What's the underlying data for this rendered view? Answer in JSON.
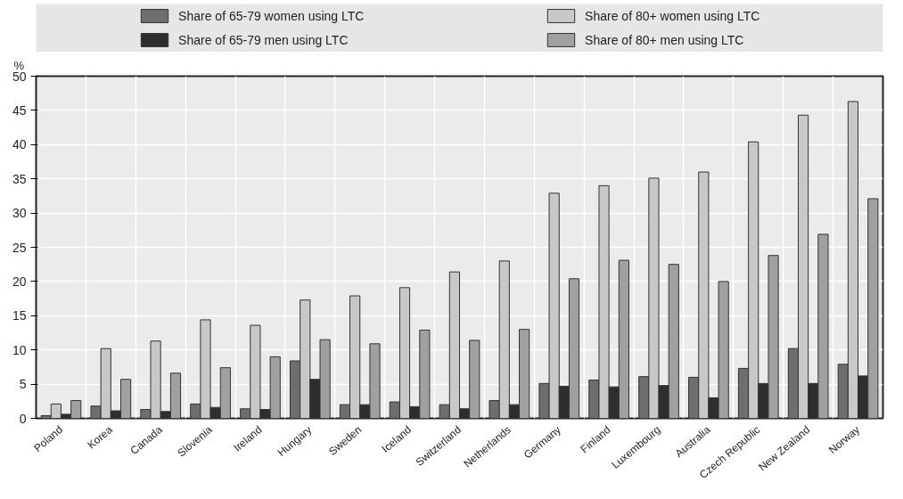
{
  "chart_data": {
    "type": "bar",
    "ylabel": "%",
    "categories": [
      "Poland",
      "Korea",
      "Canada",
      "Slovenia",
      "Ireland",
      "Hungary",
      "Sweden",
      "Iceland",
      "Switzerland",
      "Netherlands",
      "Germany",
      "Finland",
      "Luxembourg",
      "Australia",
      "Czech Republic",
      "New Zealand",
      "Norway"
    ],
    "series": [
      {
        "name": "Share of 65-79 women using LTC",
        "color": "#6e6e6e",
        "values": [
          0.4,
          1.8,
          1.3,
          2.1,
          1.4,
          8.4,
          2.0,
          2.4,
          2.0,
          2.6,
          5.1,
          5.6,
          6.1,
          6.0,
          7.3,
          10.2,
          7.9
        ]
      },
      {
        "name": "Share of 80+ women using LTC",
        "color": "#c8c8c8",
        "values": [
          2.1,
          10.2,
          11.3,
          14.4,
          13.6,
          17.3,
          17.9,
          19.1,
          21.4,
          23.0,
          32.9,
          34.0,
          35.1,
          36.0,
          40.4,
          44.3,
          46.3
        ]
      },
      {
        "name": "Share of 65-79 men using LTC",
        "color": "#2e2e2e",
        "values": [
          0.6,
          1.1,
          1.0,
          1.6,
          1.3,
          5.7,
          2.0,
          1.7,
          1.4,
          2.0,
          4.7,
          4.6,
          4.8,
          3.0,
          5.1,
          5.1,
          6.2
        ]
      },
      {
        "name": "Share of 80+ men using LTC",
        "color": "#a0a0a0",
        "values": [
          2.6,
          5.7,
          6.6,
          7.4,
          9.0,
          11.5,
          10.9,
          12.9,
          11.4,
          13.0,
          20.4,
          23.1,
          22.5,
          20.0,
          23.8,
          26.9,
          32.1
        ]
      }
    ],
    "ylim": [
      0,
      50
    ],
    "yticks": [
      0,
      5,
      10,
      15,
      20,
      25,
      30,
      35,
      40,
      45,
      50
    ],
    "grid": true,
    "legend": "top"
  }
}
